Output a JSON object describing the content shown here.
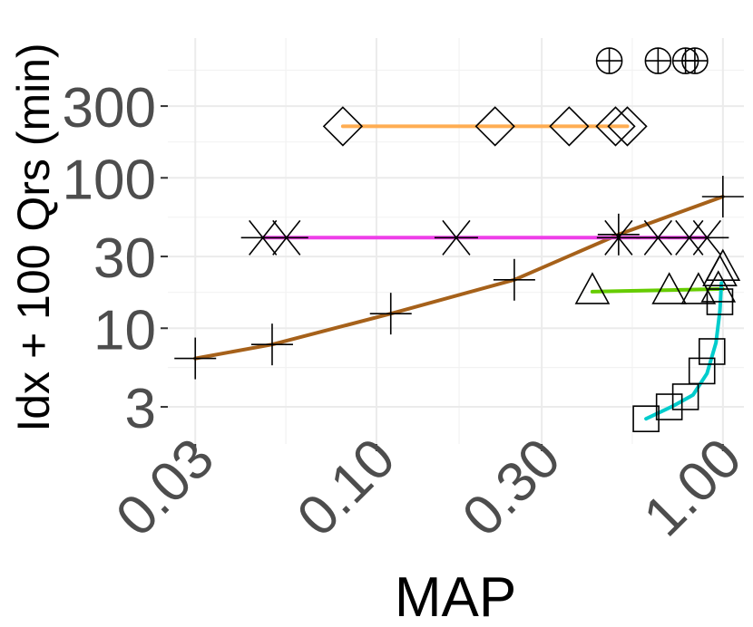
{
  "chart_data": {
    "type": "scatter",
    "title": "",
    "xlabel": "MAP",
    "ylabel": "Idx + 100 Qrs (min)",
    "x_scale": "log10",
    "y_scale": "log10",
    "xlim": [
      0.025,
      1.15
    ],
    "ylim": [
      1.7,
      850
    ],
    "x_ticks": [
      0.03,
      0.1,
      0.3,
      1.0
    ],
    "x_tick_labels": [
      "0.03",
      "0.10",
      "0.30",
      "1.00"
    ],
    "y_ticks": [
      3,
      10,
      30,
      100,
      300
    ],
    "y_tick_labels": [
      "3",
      "10",
      "30",
      "100",
      "300"
    ],
    "grid": true,
    "legend": "none",
    "series": [
      {
        "color": "#a6611a",
        "marker": "plus",
        "x": [
          0.03,
          0.05,
          0.11,
          0.25,
          0.5,
          1.0
        ],
        "y": [
          6.3,
          7.8,
          12.5,
          21,
          42,
          75
        ]
      },
      {
        "color": "#ee3ee8",
        "marker": "asterisk",
        "x": [
          0.047,
          0.055,
          0.17,
          0.5,
          0.65,
          0.8,
          0.9
        ],
        "y": [
          40,
          40,
          40,
          40,
          40,
          40,
          40
        ]
      },
      {
        "color": "#ffad52",
        "marker": "diamond",
        "x": [
          0.08,
          0.22,
          0.36,
          0.49,
          0.53
        ],
        "y": [
          220,
          220,
          220,
          220,
          220
        ]
      },
      {
        "color": "#66cc00",
        "marker": "triangle",
        "x": [
          0.42,
          0.7,
          0.85,
          0.97,
          0.98,
          1.0
        ],
        "y": [
          17.5,
          17.5,
          17.5,
          18,
          23,
          25
        ]
      },
      {
        "color": "#00cccc",
        "marker": "square",
        "x": [
          0.6,
          0.7,
          0.78,
          0.87,
          0.93,
          0.98
        ],
        "y": [
          2.5,
          3.0,
          3.5,
          5.2,
          7.0,
          15
        ]
      },
      {
        "color": "#000000",
        "marker": "circle-plus",
        "x": [
          0.47,
          0.65,
          0.78,
          0.83
        ],
        "y": [
          600,
          600,
          600,
          600
        ]
      }
    ]
  }
}
